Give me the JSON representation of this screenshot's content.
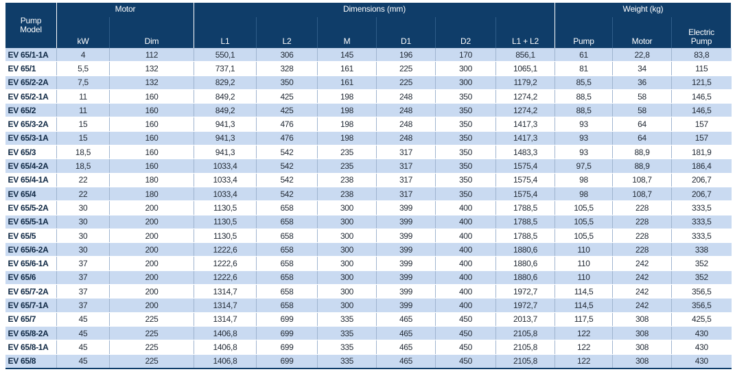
{
  "header": {
    "pump_model": "Pump\nModel",
    "motor": "Motor",
    "dimensions": "Dimensions (mm)",
    "weight": "Weight (kg)",
    "kw": "kW",
    "dim": "Dim",
    "l1": "L1",
    "l2": "L2",
    "m": "M",
    "d1": "D1",
    "d2": "D2",
    "l1l2": "L1 + L2",
    "pump": "Pump",
    "motor_w": "Motor",
    "electric_pump": "Electric\nPump"
  },
  "rows": [
    [
      "EV 65/1-1A",
      "4",
      "112",
      "550,1",
      "306",
      "145",
      "196",
      "170",
      "856,1",
      "61",
      "22,8",
      "83,8"
    ],
    [
      "EV 65/1",
      "5,5",
      "132",
      "737,1",
      "328",
      "161",
      "225",
      "300",
      "1065,1",
      "81",
      "34",
      "115"
    ],
    [
      "EV 65/2-2A",
      "7,5",
      "132",
      "829,2",
      "350",
      "161",
      "225",
      "300",
      "1179,2",
      "85,5",
      "36",
      "121,5"
    ],
    [
      "EV 65/2-1A",
      "11",
      "160",
      "849,2",
      "425",
      "198",
      "248",
      "350",
      "1274,2",
      "88,5",
      "58",
      "146,5"
    ],
    [
      "EV 65/2",
      "11",
      "160",
      "849,2",
      "425",
      "198",
      "248",
      "350",
      "1274,2",
      "88,5",
      "58",
      "146,5"
    ],
    [
      "EV 65/3-2A",
      "15",
      "160",
      "941,3",
      "476",
      "198",
      "248",
      "350",
      "1417,3",
      "93",
      "64",
      "157"
    ],
    [
      "EV 65/3-1A",
      "15",
      "160",
      "941,3",
      "476",
      "198",
      "248",
      "350",
      "1417,3",
      "93",
      "64",
      "157"
    ],
    [
      "EV 65/3",
      "18,5",
      "160",
      "941,3",
      "542",
      "235",
      "317",
      "350",
      "1483,3",
      "93",
      "88,9",
      "181,9"
    ],
    [
      "EV 65/4-2A",
      "18,5",
      "160",
      "1033,4",
      "542",
      "235",
      "317",
      "350",
      "1575,4",
      "97,5",
      "88,9",
      "186,4"
    ],
    [
      "EV 65/4-1A",
      "22",
      "180",
      "1033,4",
      "542",
      "238",
      "317",
      "350",
      "1575,4",
      "98",
      "108,7",
      "206,7"
    ],
    [
      "EV 65/4",
      "22",
      "180",
      "1033,4",
      "542",
      "238",
      "317",
      "350",
      "1575,4",
      "98",
      "108,7",
      "206,7"
    ],
    [
      "EV 65/5-2A",
      "30",
      "200",
      "1130,5",
      "658",
      "300",
      "399",
      "400",
      "1788,5",
      "105,5",
      "228",
      "333,5"
    ],
    [
      "EV 65/5-1A",
      "30",
      "200",
      "1130,5",
      "658",
      "300",
      "399",
      "400",
      "1788,5",
      "105,5",
      "228",
      "333,5"
    ],
    [
      "EV 65/5",
      "30",
      "200",
      "1130,5",
      "658",
      "300",
      "399",
      "400",
      "1788,5",
      "105,5",
      "228",
      "333,5"
    ],
    [
      "EV 65/6-2A",
      "30",
      "200",
      "1222,6",
      "658",
      "300",
      "399",
      "400",
      "1880,6",
      "110",
      "228",
      "338"
    ],
    [
      "EV 65/6-1A",
      "37",
      "200",
      "1222,6",
      "658",
      "300",
      "399",
      "400",
      "1880,6",
      "110",
      "242",
      "352"
    ],
    [
      "EV 65/6",
      "37",
      "200",
      "1222,6",
      "658",
      "300",
      "399",
      "400",
      "1880,6",
      "110",
      "242",
      "352"
    ],
    [
      "EV 65/7-2A",
      "37",
      "200",
      "1314,7",
      "658",
      "300",
      "399",
      "400",
      "1972,7",
      "114,5",
      "242",
      "356,5"
    ],
    [
      "EV 65/7-1A",
      "37",
      "200",
      "1314,7",
      "658",
      "300",
      "399",
      "400",
      "1972,7",
      "114,5",
      "242",
      "356,5"
    ],
    [
      "EV 65/7",
      "45",
      "225",
      "1314,7",
      "699",
      "335",
      "465",
      "450",
      "2013,7",
      "117,5",
      "308",
      "425,5"
    ],
    [
      "EV 65/8-2A",
      "45",
      "225",
      "1406,8",
      "699",
      "335",
      "465",
      "450",
      "2105,8",
      "122",
      "308",
      "430"
    ],
    [
      "EV 65/8-1A",
      "45",
      "225",
      "1406,8",
      "699",
      "335",
      "465",
      "450",
      "2105,8",
      "122",
      "308",
      "430"
    ],
    [
      "EV 65/8",
      "45",
      "225",
      "1406,8",
      "699",
      "335",
      "465",
      "450",
      "2105,8",
      "122",
      "308",
      "430"
    ]
  ]
}
